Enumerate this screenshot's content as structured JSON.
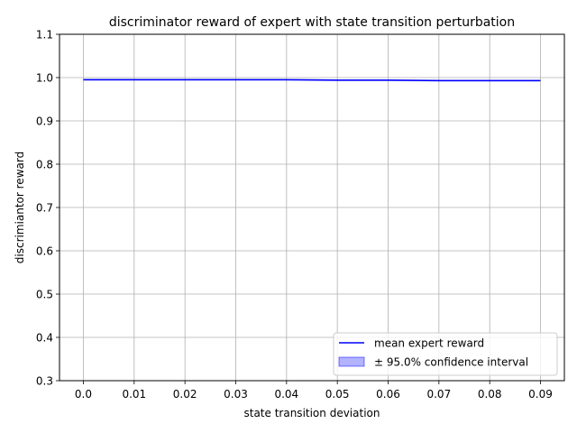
{
  "chart_data": {
    "type": "line",
    "title": "discriminator reward of expert with state transition perturbation",
    "xlabel": "state transition deviation",
    "ylabel": "discrimiantor reward",
    "xlim": [
      -0.0047,
      0.0947
    ],
    "ylim": [
      0.3,
      1.1
    ],
    "xticks": [
      0.0,
      0.01,
      0.02,
      0.03,
      0.04,
      0.05,
      0.06,
      0.07,
      0.08,
      0.09
    ],
    "xtick_labels": [
      "0.0",
      "0.01",
      "0.02",
      "0.03",
      "0.04",
      "0.05",
      "0.06",
      "0.07",
      "0.08",
      "0.09"
    ],
    "yticks": [
      0.3,
      0.4,
      0.5,
      0.6,
      0.7,
      0.8,
      0.9,
      1.0,
      1.1
    ],
    "ytick_labels": [
      "0.3",
      "0.4",
      "0.5",
      "0.6",
      "0.7",
      "0.8",
      "0.9",
      "1.0",
      "1.1"
    ],
    "grid": true,
    "legend_position": "lower-right",
    "x": [
      0.0,
      0.01,
      0.02,
      0.03,
      0.04,
      0.05,
      0.06,
      0.07,
      0.08,
      0.09
    ],
    "series": [
      {
        "name": "mean expert reward",
        "color": "#0000ff",
        "values": [
          0.995,
          0.995,
          0.995,
          0.995,
          0.995,
          0.994,
          0.994,
          0.993,
          0.993,
          0.993
        ],
        "ci_lower": [
          0.993,
          0.993,
          0.993,
          0.993,
          0.993,
          0.992,
          0.992,
          0.991,
          0.991,
          0.991
        ],
        "ci_upper": [
          0.997,
          0.997,
          0.997,
          0.997,
          0.997,
          0.996,
          0.996,
          0.995,
          0.995,
          0.995
        ]
      }
    ],
    "ci_label": "± 95.0% confidence interval",
    "ci_color": "#0000ff",
    "ci_opacity": 0.3
  }
}
